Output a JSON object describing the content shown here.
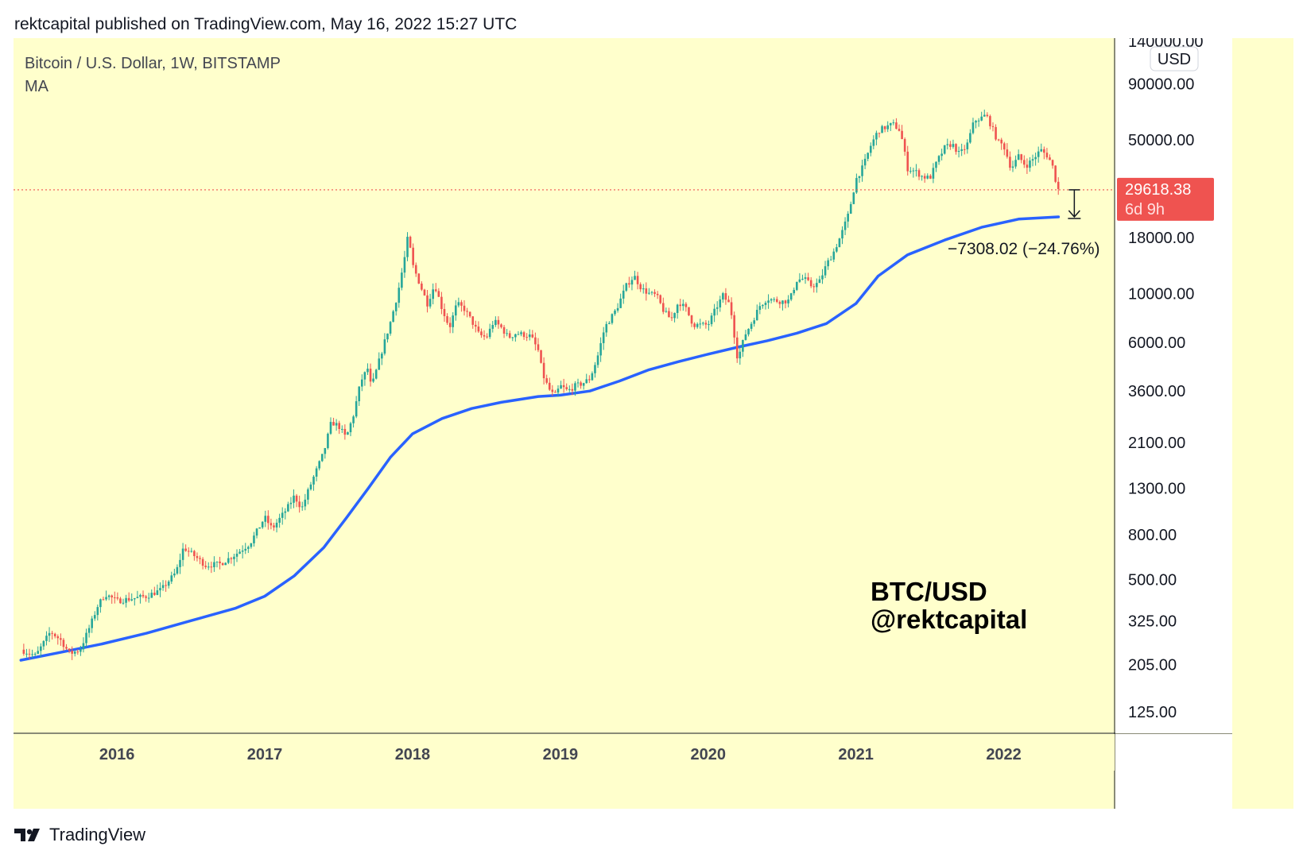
{
  "header": {
    "text": "rektcapital published on TradingView.com, May 16, 2022 15:27 UTC"
  },
  "footer": {
    "brand": "TradingView",
    "logo_icon": "tradingview-logo-icon"
  },
  "colors": {
    "background": "#ffffcc",
    "up": "#26a69a",
    "down": "#ef5350",
    "ma": "#2962ff",
    "price_label": "#ef5350",
    "axis_text": "#131722"
  },
  "chart_data": {
    "type": "candlestick",
    "title": "Bitcoin / U.S. Dollar, 1W, BITSTAMP",
    "indicator": "MA",
    "currency": "USD",
    "y_scale": "log",
    "ylim": [
      100,
      145000
    ],
    "xlim": [
      2015.3,
      2022.75
    ],
    "x_ticks": [
      {
        "label": "2016",
        "x": 2016.0
      },
      {
        "label": "2017",
        "x": 2017.0
      },
      {
        "label": "2018",
        "x": 2018.0
      },
      {
        "label": "2019",
        "x": 2019.0
      },
      {
        "label": "2020",
        "x": 2020.0
      },
      {
        "label": "2021",
        "x": 2021.0
      },
      {
        "label": "2022",
        "x": 2022.0
      }
    ],
    "y_ticks": [
      "140000.00",
      "90000.00",
      "50000.00",
      "18000.00",
      "10000.00",
      "6000.00",
      "3600.00",
      "2100.00",
      "1300.00",
      "800.00",
      "500.00",
      "325.00",
      "205.00",
      "125.00"
    ],
    "last_price": {
      "value": 29618.38,
      "label": "29618.38",
      "countdown": "6d 9h"
    },
    "measure_annotation": "−7308.02 (−24.76%)",
    "watermark": [
      "BTC/USD",
      "@rektcapital"
    ],
    "price_path": [
      [
        2015.35,
        240
      ],
      [
        2015.45,
        225
      ],
      [
        2015.55,
        290
      ],
      [
        2015.62,
        265
      ],
      [
        2015.68,
        230
      ],
      [
        2015.75,
        240
      ],
      [
        2015.82,
        310
      ],
      [
        2015.87,
        380
      ],
      [
        2015.92,
        430
      ],
      [
        2016.0,
        400
      ],
      [
        2016.1,
        410
      ],
      [
        2016.2,
        420
      ],
      [
        2016.3,
        450
      ],
      [
        2016.4,
        540
      ],
      [
        2016.45,
        700
      ],
      [
        2016.5,
        660
      ],
      [
        2016.55,
        620
      ],
      [
        2016.6,
        580
      ],
      [
        2016.7,
        590
      ],
      [
        2016.8,
        650
      ],
      [
        2016.9,
        730
      ],
      [
        2017.0,
        960
      ],
      [
        2017.05,
        850
      ],
      [
        2017.15,
        1050
      ],
      [
        2017.2,
        1200
      ],
      [
        2017.25,
        1050
      ],
      [
        2017.3,
        1300
      ],
      [
        2017.4,
        1900
      ],
      [
        2017.45,
        2600
      ],
      [
        2017.5,
        2500
      ],
      [
        2017.55,
        2200
      ],
      [
        2017.6,
        2800
      ],
      [
        2017.65,
        4000
      ],
      [
        2017.7,
        4600
      ],
      [
        2017.72,
        3700
      ],
      [
        2017.8,
        5700
      ],
      [
        2017.85,
        7400
      ],
      [
        2017.9,
        10000
      ],
      [
        2017.95,
        15000
      ],
      [
        2017.97,
        18500
      ],
      [
        2018.0,
        13500
      ],
      [
        2018.05,
        11000
      ],
      [
        2018.1,
        9000
      ],
      [
        2018.15,
        11000
      ],
      [
        2018.2,
        8500
      ],
      [
        2018.25,
        7000
      ],
      [
        2018.3,
        9000
      ],
      [
        2018.35,
        8500
      ],
      [
        2018.4,
        7500
      ],
      [
        2018.45,
        6500
      ],
      [
        2018.5,
        6300
      ],
      [
        2018.55,
        7500
      ],
      [
        2018.6,
        7000
      ],
      [
        2018.65,
        6300
      ],
      [
        2018.7,
        6600
      ],
      [
        2018.8,
        6400
      ],
      [
        2018.85,
        5500
      ],
      [
        2018.88,
        4300
      ],
      [
        2018.92,
        3700
      ],
      [
        2018.96,
        3400
      ],
      [
        2019.0,
        3800
      ],
      [
        2019.05,
        3600
      ],
      [
        2019.1,
        3800
      ],
      [
        2019.15,
        3900
      ],
      [
        2019.2,
        4100
      ],
      [
        2019.25,
        5100
      ],
      [
        2019.3,
        7000
      ],
      [
        2019.38,
        8500
      ],
      [
        2019.45,
        11000
      ],
      [
        2019.5,
        12000
      ],
      [
        2019.55,
        10500
      ],
      [
        2019.6,
        10000
      ],
      [
        2019.65,
        9800
      ],
      [
        2019.7,
        8300
      ],
      [
        2019.75,
        7600
      ],
      [
        2019.8,
        9200
      ],
      [
        2019.85,
        8500
      ],
      [
        2019.9,
        7200
      ],
      [
        2019.95,
        7200
      ],
      [
        2020.0,
        7200
      ],
      [
        2020.05,
        8500
      ],
      [
        2020.1,
        9800
      ],
      [
        2020.15,
        8800
      ],
      [
        2020.2,
        5000
      ],
      [
        2020.25,
        6500
      ],
      [
        2020.3,
        7500
      ],
      [
        2020.35,
        8800
      ],
      [
        2020.4,
        9500
      ],
      [
        2020.45,
        9300
      ],
      [
        2020.5,
        9200
      ],
      [
        2020.55,
        9300
      ],
      [
        2020.6,
        11500
      ],
      [
        2020.65,
        11700
      ],
      [
        2020.7,
        10800
      ],
      [
        2020.75,
        11200
      ],
      [
        2020.8,
        13500
      ],
      [
        2020.85,
        15500
      ],
      [
        2020.9,
        18500
      ],
      [
        2020.95,
        23000
      ],
      [
        2021.0,
        33000
      ],
      [
        2021.05,
        38000
      ],
      [
        2021.1,
        47000
      ],
      [
        2021.15,
        55000
      ],
      [
        2021.2,
        57000
      ],
      [
        2021.25,
        59000
      ],
      [
        2021.3,
        55000
      ],
      [
        2021.35,
        37000
      ],
      [
        2021.4,
        36000
      ],
      [
        2021.45,
        34000
      ],
      [
        2021.5,
        33500
      ],
      [
        2021.55,
        40000
      ],
      [
        2021.6,
        46000
      ],
      [
        2021.65,
        48000
      ],
      [
        2021.7,
        43000
      ],
      [
        2021.75,
        47000
      ],
      [
        2021.8,
        61000
      ],
      [
        2021.85,
        63000
      ],
      [
        2021.88,
        65000
      ],
      [
        2021.92,
        57000
      ],
      [
        2021.96,
        49000
      ],
      [
        2022.0,
        47000
      ],
      [
        2022.05,
        37000
      ],
      [
        2022.1,
        42000
      ],
      [
        2022.15,
        38000
      ],
      [
        2022.2,
        41000
      ],
      [
        2022.25,
        45000
      ],
      [
        2022.3,
        42000
      ],
      [
        2022.33,
        38000
      ],
      [
        2022.35,
        33000
      ],
      [
        2022.37,
        29618
      ]
    ],
    "ma_path": [
      [
        2015.35,
        215
      ],
      [
        2015.6,
        232
      ],
      [
        2015.9,
        255
      ],
      [
        2016.2,
        285
      ],
      [
        2016.5,
        325
      ],
      [
        2016.8,
        370
      ],
      [
        2017.0,
        420
      ],
      [
        2017.2,
        520
      ],
      [
        2017.4,
        700
      ],
      [
        2017.55,
        950
      ],
      [
        2017.7,
        1300
      ],
      [
        2017.85,
        1800
      ],
      [
        2018.0,
        2300
      ],
      [
        2018.2,
        2700
      ],
      [
        2018.4,
        3000
      ],
      [
        2018.6,
        3200
      ],
      [
        2018.85,
        3400
      ],
      [
        2019.0,
        3450
      ],
      [
        2019.2,
        3600
      ],
      [
        2019.4,
        4000
      ],
      [
        2019.6,
        4500
      ],
      [
        2019.8,
        4900
      ],
      [
        2020.0,
        5300
      ],
      [
        2020.2,
        5700
      ],
      [
        2020.4,
        6100
      ],
      [
        2020.6,
        6600
      ],
      [
        2020.8,
        7300
      ],
      [
        2021.0,
        9000
      ],
      [
        2021.15,
        12000
      ],
      [
        2021.35,
        15000
      ],
      [
        2021.6,
        17500
      ],
      [
        2021.85,
        20000
      ],
      [
        2022.1,
        21800
      ],
      [
        2022.37,
        22300
      ]
    ]
  }
}
